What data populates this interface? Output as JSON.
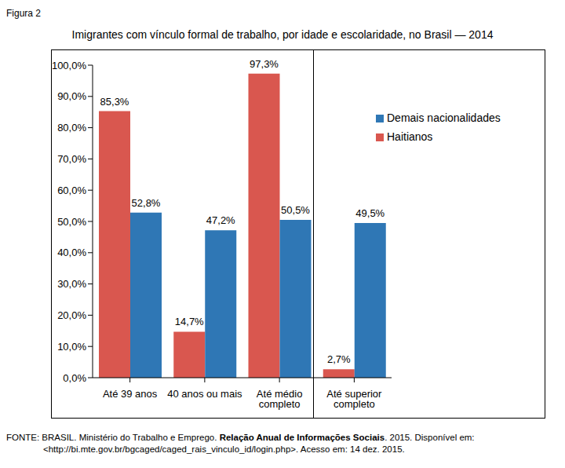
{
  "figure_label": "Figura 2",
  "chart_data": {
    "type": "bar",
    "title": "Imigrantes com vínculo formal de trabalho, por idade e escolaridade, no Brasil — 2014",
    "categories": [
      "Até 39 anos",
      "40 anos ou mais",
      "Até médio completo",
      "Até superior completo"
    ],
    "series": [
      {
        "name": "Haitianos",
        "color": "#d9574f",
        "values": [
          85.3,
          14.7,
          97.3,
          2.7
        ],
        "value_labels": [
          "85,3%",
          "14,7%",
          "97,3%",
          "2,7%"
        ]
      },
      {
        "name": "Demais nacionalidades",
        "color": "#2f77b5",
        "values": [
          52.8,
          47.2,
          50.5,
          49.5
        ],
        "value_labels": [
          "52,8%",
          "47,2%",
          "50,5%",
          "49,5%"
        ]
      }
    ],
    "ylim": [
      0,
      100
    ],
    "yticks": [
      {
        "value": 0,
        "label": "0,0%"
      },
      {
        "value": 10,
        "label": "10,0%"
      },
      {
        "value": 20,
        "label": "20,0%"
      },
      {
        "value": 30,
        "label": "30,0%"
      },
      {
        "value": 40,
        "label": "40,0%"
      },
      {
        "value": 50,
        "label": "50,0%"
      },
      {
        "value": 60,
        "label": "60,0%"
      },
      {
        "value": 70,
        "label": "70,0%"
      },
      {
        "value": 80,
        "label": "80,0%"
      },
      {
        "value": 90,
        "label": "90,0%"
      },
      {
        "value": 100,
        "label": "100,0%"
      }
    ],
    "grid": false,
    "legend": "upper right",
    "data_labels": true
  },
  "source": [
    "FONTE: BRASIL. Ministério do Trabalho e Emprego. ",
    "Relação Anual de Informações Sociais",
    ". 2015. Disponível em: <http://bi.mte.gov.br/bgcaged/caged_rais_vinculo_id/login.php>. Acesso em: 14 dez. 2015."
  ]
}
